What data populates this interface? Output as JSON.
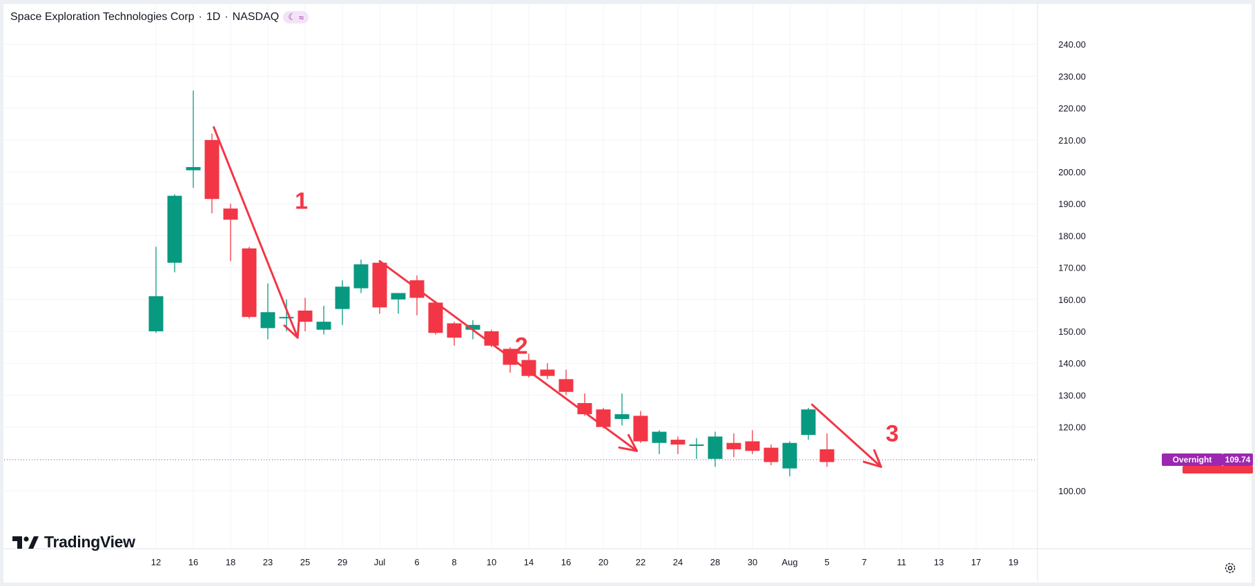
{
  "header": {
    "symbol_title": "Space Exploration Technologies Corp",
    "interval": "1D",
    "exchange": "NASDAQ",
    "separator": "·",
    "badge_icons": [
      "moon-icon",
      "tilde-icon"
    ]
  },
  "branding": {
    "logo_text": "TradingView"
  },
  "price_tags": {
    "session_label": "Overnight",
    "session_price": "109.74"
  },
  "annotations": [
    {
      "label": "1",
      "color": "#f23645"
    },
    {
      "label": "2",
      "color": "#f23645"
    },
    {
      "label": "3",
      "color": "#f23645"
    }
  ],
  "colors": {
    "up": "#089981",
    "down": "#f23645",
    "grid": "#f0f3fa",
    "axis_text": "#131722",
    "price_line": "#9c27b0",
    "badge": "#9c27b0"
  },
  "chart_data": {
    "type": "candlestick",
    "title": "Space Exploration Technologies Corp · 1D · NASDAQ",
    "xlabel": "",
    "ylabel": "",
    "ylim": [
      95,
      240
    ],
    "y_ticks": [
      "100.00",
      "120.00",
      "130.00",
      "140.00",
      "150.00",
      "160.00",
      "170.00",
      "180.00",
      "190.00",
      "200.00",
      "210.00",
      "220.00",
      "230.00",
      "240.00"
    ],
    "x_ticks": [
      {
        "label": "12",
        "i": 0
      },
      {
        "label": "16",
        "i": 2
      },
      {
        "label": "18",
        "i": 4
      },
      {
        "label": "23",
        "i": 6
      },
      {
        "label": "25",
        "i": 8
      },
      {
        "label": "29",
        "i": 10
      },
      {
        "label": "Jul",
        "i": 12
      },
      {
        "label": "6",
        "i": 14
      },
      {
        "label": "8",
        "i": 16
      },
      {
        "label": "10",
        "i": 18
      },
      {
        "label": "14",
        "i": 20
      },
      {
        "label": "16",
        "i": 22
      },
      {
        "label": "20",
        "i": 24
      },
      {
        "label": "22",
        "i": 26
      },
      {
        "label": "24",
        "i": 28
      },
      {
        "label": "28",
        "i": 30
      },
      {
        "label": "30",
        "i": 32
      },
      {
        "label": "Aug",
        "i": 34
      },
      {
        "label": "5",
        "i": 36
      },
      {
        "label": "7",
        "i": 38
      },
      {
        "label": "11",
        "i": 40
      },
      {
        "label": "13",
        "i": 42
      },
      {
        "label": "17",
        "i": 44
      },
      {
        "label": "19",
        "i": 46
      }
    ],
    "candles": [
      {
        "o": 150.0,
        "h": 176.5,
        "l": 149.5,
        "c": 161.0
      },
      {
        "o": 171.5,
        "h": 193.0,
        "l": 168.5,
        "c": 192.5
      },
      {
        "o": 200.5,
        "h": 225.5,
        "l": 195.0,
        "c": 201.5
      },
      {
        "o": 210.0,
        "h": 212.0,
        "l": 187.0,
        "c": 191.5
      },
      {
        "o": 188.5,
        "h": 190.0,
        "l": 172.0,
        "c": 185.0
      },
      {
        "o": 176.0,
        "h": 176.5,
        "l": 154.0,
        "c": 154.5
      },
      {
        "o": 151.0,
        "h": 165.0,
        "l": 147.5,
        "c": 156.0
      },
      {
        "o": 154.5,
        "h": 160.0,
        "l": 150.0,
        "c": 154.5
      },
      {
        "o": 156.5,
        "h": 160.5,
        "l": 150.0,
        "c": 153.0
      },
      {
        "o": 150.5,
        "h": 158.0,
        "l": 149.0,
        "c": 153.0
      },
      {
        "o": 157.0,
        "h": 166.0,
        "l": 152.0,
        "c": 164.0
      },
      {
        "o": 163.5,
        "h": 172.5,
        "l": 162.0,
        "c": 171.0
      },
      {
        "o": 171.5,
        "h": 172.0,
        "l": 155.5,
        "c": 157.5
      },
      {
        "o": 160.0,
        "h": 162.0,
        "l": 155.5,
        "c": 162.0
      },
      {
        "o": 166.0,
        "h": 167.5,
        "l": 155.0,
        "c": 160.5
      },
      {
        "o": 159.0,
        "h": 159.5,
        "l": 149.0,
        "c": 149.5
      },
      {
        "o": 152.5,
        "h": 153.0,
        "l": 145.5,
        "c": 148.0
      },
      {
        "o": 150.5,
        "h": 153.5,
        "l": 147.5,
        "c": 152.0
      },
      {
        "o": 150.0,
        "h": 150.5,
        "l": 145.0,
        "c": 145.5
      },
      {
        "o": 144.5,
        "h": 145.0,
        "l": 137.0,
        "c": 139.5
      },
      {
        "o": 141.0,
        "h": 143.0,
        "l": 135.5,
        "c": 136.0
      },
      {
        "o": 138.0,
        "h": 140.0,
        "l": 135.0,
        "c": 136.0
      },
      {
        "o": 135.0,
        "h": 138.0,
        "l": 130.0,
        "c": 131.0
      },
      {
        "o": 127.5,
        "h": 130.5,
        "l": 123.5,
        "c": 124.0
      },
      {
        "o": 125.5,
        "h": 126.0,
        "l": 119.5,
        "c": 120.0
      },
      {
        "o": 122.5,
        "h": 130.5,
        "l": 120.5,
        "c": 124.0
      },
      {
        "o": 123.5,
        "h": 125.0,
        "l": 115.0,
        "c": 115.5
      },
      {
        "o": 115.0,
        "h": 119.0,
        "l": 111.5,
        "c": 118.5
      },
      {
        "o": 116.0,
        "h": 117.0,
        "l": 111.5,
        "c": 114.5
      },
      {
        "o": 114.5,
        "h": 116.5,
        "l": 110.0,
        "c": 114.5
      },
      {
        "o": 110.0,
        "h": 118.5,
        "l": 107.5,
        "c": 117.0
      },
      {
        "o": 115.0,
        "h": 118.0,
        "l": 110.5,
        "c": 113.0
      },
      {
        "o": 115.5,
        "h": 119.0,
        "l": 111.5,
        "c": 112.5
      },
      {
        "o": 113.5,
        "h": 114.5,
        "l": 108.0,
        "c": 109.0
      },
      {
        "o": 107.0,
        "h": 115.5,
        "l": 104.5,
        "c": 115.0
      },
      {
        "o": 117.5,
        "h": 126.0,
        "l": 116.0,
        "c": 125.5
      },
      {
        "o": 113.0,
        "h": 118.0,
        "l": 107.5,
        "c": 109.0
      }
    ],
    "arrows": [
      {
        "from": [
          3.1,
          214.0
        ],
        "to": [
          7.6,
          148.0
        ],
        "label": "1",
        "label_at": [
          7.8,
          191.5
        ]
      },
      {
        "from": [
          12.0,
          172.0
        ],
        "to": [
          25.8,
          112.5
        ],
        "label": "2",
        "label_at": [
          19.6,
          146.0
        ]
      },
      {
        "from": [
          35.2,
          127.0
        ],
        "to": [
          38.9,
          107.5
        ],
        "label": "3",
        "label_at": [
          39.5,
          118.5
        ]
      }
    ],
    "last_price": 109.74,
    "grid": true
  }
}
